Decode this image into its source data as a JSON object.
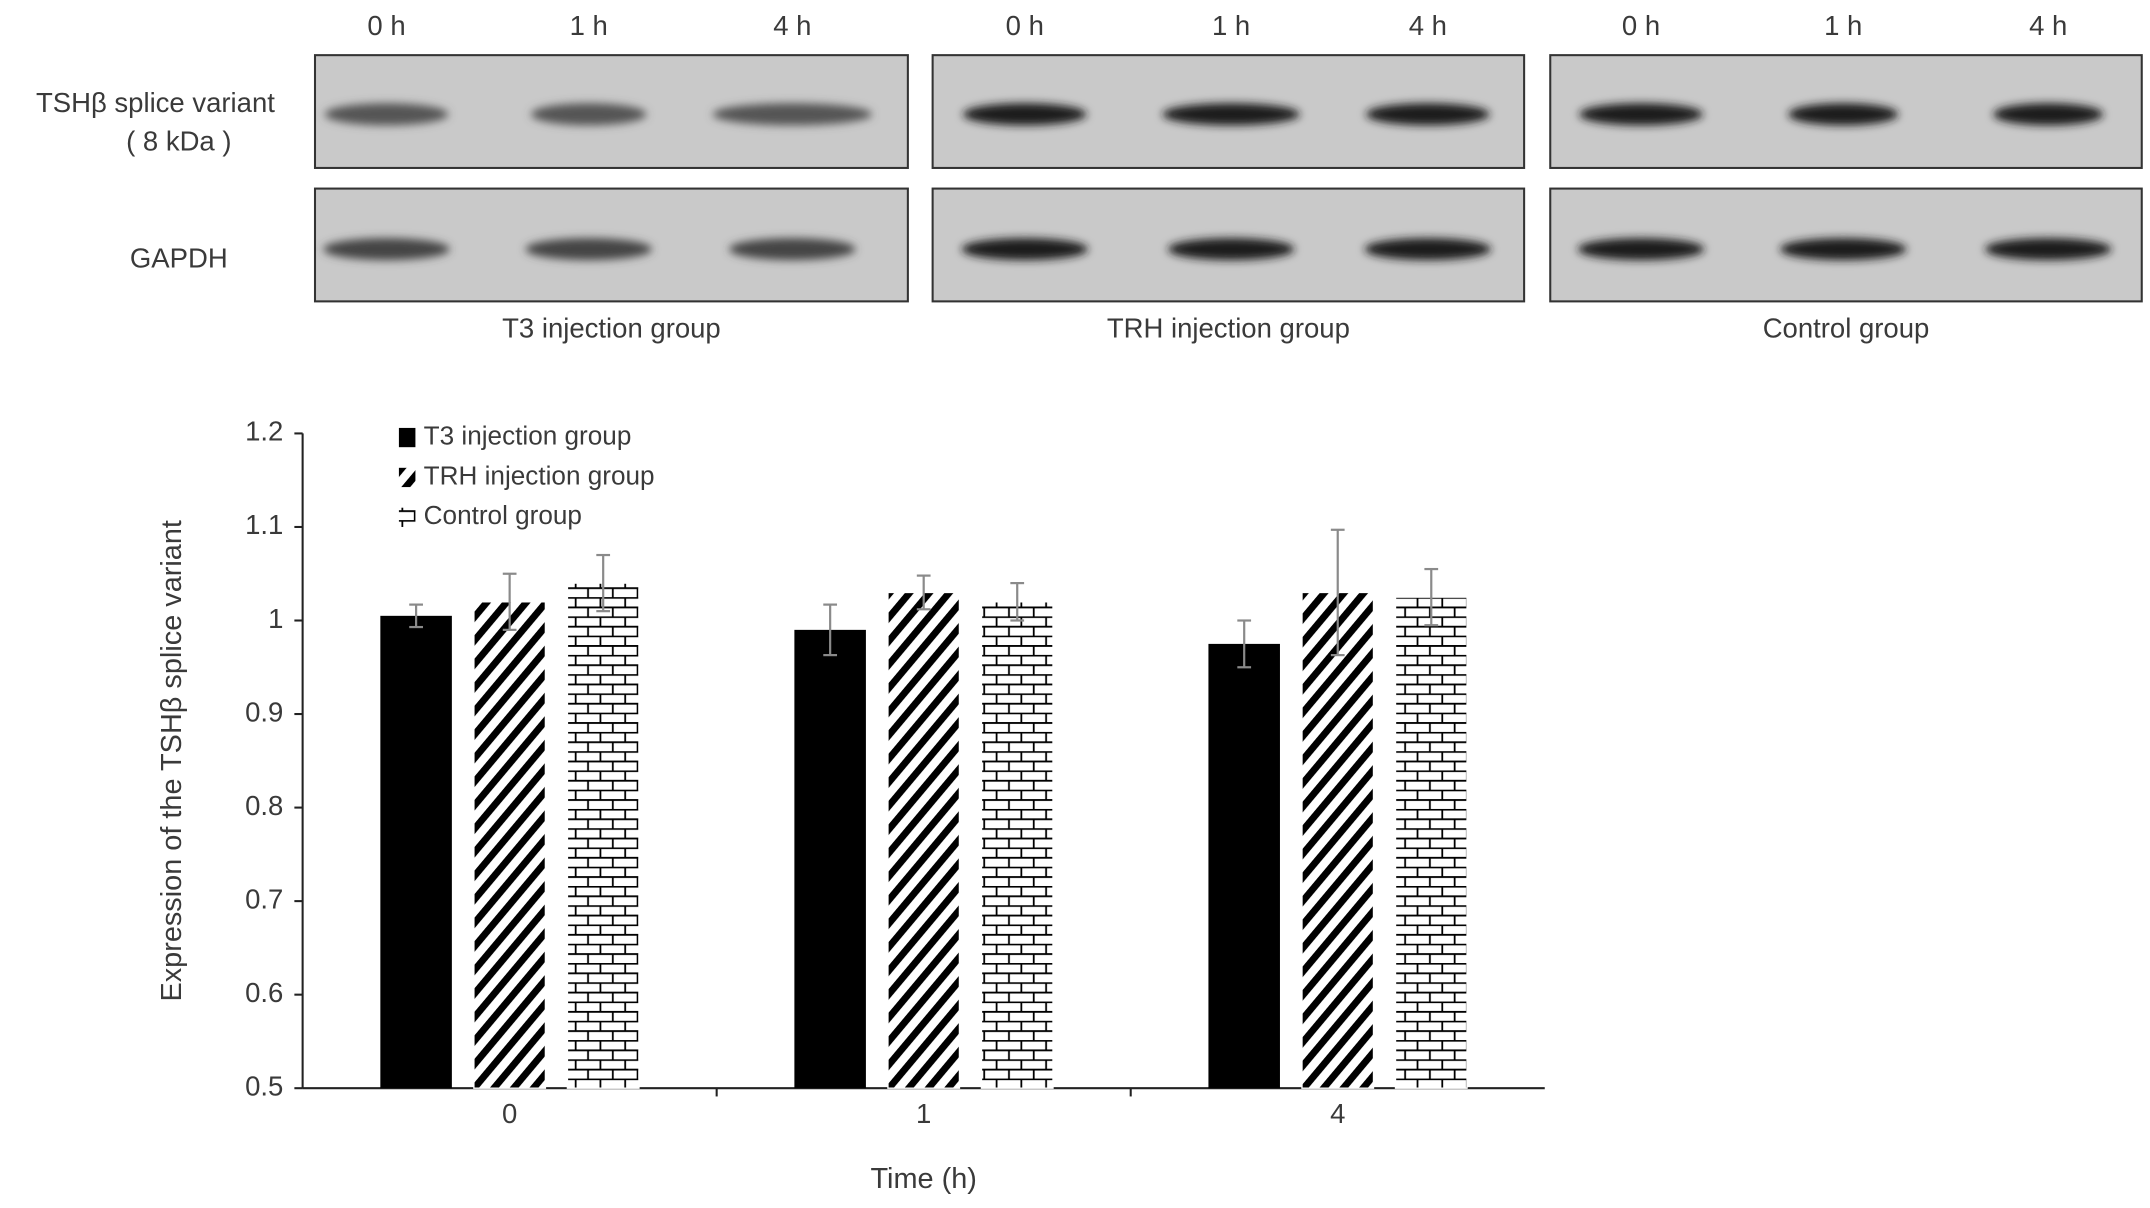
{
  "blots": {
    "row_labels": [
      "TSHβ splice variant",
      "( 8 kDa )",
      "GAPDH"
    ],
    "panels": [
      {
        "group": "T3 injection group",
        "lanes": [
          "0 h",
          "1 h",
          "4 h"
        ]
      },
      {
        "group": "TRH injection group",
        "lanes": [
          "0 h",
          "1 h",
          "4 h"
        ]
      },
      {
        "group": "Control group",
        "lanes": [
          "0 h",
          "1 h",
          "4 h"
        ]
      }
    ]
  },
  "chart_data": {
    "type": "bar",
    "xlabel": "Time (h)",
    "ylabel": "Expression of the TSHβ splice variant",
    "categories": [
      "0",
      "1",
      "4"
    ],
    "series": [
      {
        "name": "T3 injection group",
        "color": "#000000",
        "pattern": "solid",
        "values": [
          1.005,
          0.99,
          0.975
        ],
        "errors": [
          0.012,
          0.027,
          0.025
        ]
      },
      {
        "name": "TRH injection group",
        "color": "#000000",
        "pattern": "hatch",
        "values": [
          1.02,
          1.03,
          1.03
        ],
        "errors": [
          0.03,
          0.018,
          0.067
        ]
      },
      {
        "name": "Control group",
        "color": "#000000",
        "pattern": "brick",
        "values": [
          1.04,
          1.02,
          1.025
        ],
        "errors": [
          0.03,
          0.02,
          0.03
        ]
      }
    ],
    "ylim": [
      0.5,
      1.2
    ],
    "yticks": [
      0.5,
      0.6,
      0.7,
      0.8,
      0.9,
      1,
      1.1,
      1.2
    ],
    "grid": false
  }
}
